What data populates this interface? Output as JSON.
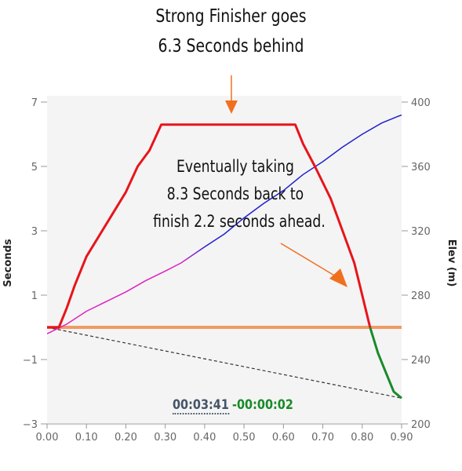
{
  "annotations": {
    "top_line1": "Strong Finisher goes",
    "top_line2": "6.3 Seconds behind",
    "mid_line1": "Eventually taking",
    "mid_line2": "8.3 Seconds back to",
    "mid_line3": "finish 2.2 seconds ahead."
  },
  "timers": {
    "elapsed": "00:03:41",
    "delta": "-00:00:02"
  },
  "colors": {
    "gap": "#e8141b",
    "gap_end": "#1a8a2a",
    "elevation": "#2020d0",
    "elevation_start": "#e020c0",
    "zero_line": "#f08a4b",
    "trend": "#333333",
    "arrow": "#f07020"
  },
  "chart_data": {
    "type": "line",
    "title": "",
    "xlabel": "",
    "ylabel_left": "Seconds",
    "ylabel_right": "Elev (m)",
    "xlim": [
      0,
      0.9
    ],
    "ylim_left": [
      -3,
      7
    ],
    "ylim_right": [
      200,
      400
    ],
    "x_ticks": [
      "0.00",
      "0.10",
      "0.20",
      "0.30",
      "0.40",
      "0.50",
      "0.60",
      "0.70",
      "0.80",
      "0.90"
    ],
    "y_left_ticks": [
      "−3",
      "−1",
      "1",
      "3",
      "5",
      "7"
    ],
    "y_right_ticks": [
      "200",
      "240",
      "280",
      "320",
      "360",
      "400"
    ],
    "series": [
      {
        "axis": "left",
        "points": [
          [
            0,
            0
          ],
          [
            0.03,
            0
          ],
          [
            0.05,
            0.6
          ],
          [
            0.07,
            1.3
          ],
          [
            0.1,
            2.2
          ],
          [
            0.13,
            2.8
          ],
          [
            0.15,
            3.2
          ],
          [
            0.2,
            4.2
          ],
          [
            0.23,
            5.0
          ],
          [
            0.26,
            5.5
          ],
          [
            0.29,
            6.3
          ],
          [
            0.35,
            6.3
          ],
          [
            0.45,
            6.3
          ],
          [
            0.55,
            6.3
          ],
          [
            0.63,
            6.3
          ],
          [
            0.65,
            5.7
          ],
          [
            0.68,
            5.0
          ],
          [
            0.72,
            4.0
          ],
          [
            0.75,
            3.0
          ],
          [
            0.78,
            2.0
          ],
          [
            0.8,
            1.0
          ],
          [
            0.82,
            0.0
          ]
        ]
      },
      {
        "axis": "left",
        "points": [
          [
            0.82,
            0.0
          ],
          [
            0.84,
            -0.8
          ],
          [
            0.86,
            -1.4
          ],
          [
            0.88,
            -2.0
          ],
          [
            0.9,
            -2.2
          ]
        ]
      },
      {
        "axis": "right",
        "points": [
          [
            0,
            256
          ],
          [
            0.05,
            262
          ],
          [
            0.1,
            270
          ],
          [
            0.15,
            276
          ],
          [
            0.2,
            282
          ],
          [
            0.25,
            289
          ],
          [
            0.3,
            295
          ],
          [
            0.34,
            300
          ],
          [
            0.4,
            310
          ],
          [
            0.45,
            318
          ],
          [
            0.5,
            328
          ],
          [
            0.55,
            337
          ],
          [
            0.6,
            345
          ],
          [
            0.65,
            355
          ],
          [
            0.7,
            363
          ],
          [
            0.75,
            372
          ],
          [
            0.8,
            380
          ],
          [
            0.85,
            387
          ],
          [
            0.9,
            392
          ]
        ]
      },
      {
        "axis": "left",
        "style": "dashed",
        "points": [
          [
            0,
            0
          ],
          [
            0.9,
            -2.2
          ]
        ]
      },
      {
        "axis": "left",
        "style": "reference",
        "points": [
          [
            0,
            0
          ],
          [
            0.9,
            0
          ]
        ]
      }
    ]
  }
}
